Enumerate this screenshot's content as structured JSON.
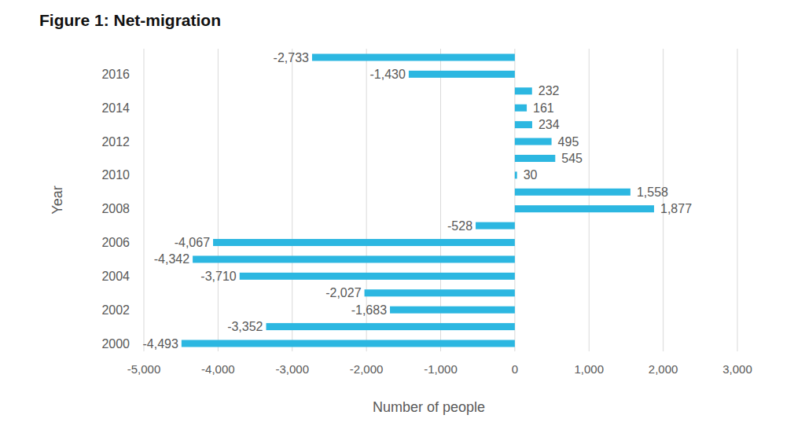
{
  "chart_data": {
    "type": "bar",
    "orientation": "horizontal",
    "title": "Figure 1: Net-migration",
    "x_label": "Number of people",
    "y_label": "Year",
    "categories": [
      "2000",
      null,
      "2002",
      null,
      "2004",
      null,
      "2006",
      null,
      "2008",
      null,
      "2010",
      null,
      "2012",
      null,
      "2014",
      null,
      "2016",
      null
    ],
    "values": [
      -4493,
      -3352,
      -1683,
      -2027,
      -3710,
      -4342,
      -4067,
      -528,
      1877,
      1558,
      30,
      545,
      495,
      234,
      161,
      232,
      -1430,
      -2733
    ],
    "value_labels": [
      "-4,493",
      "-3,352",
      "-1,683",
      "-2,027",
      "-3,710",
      "-4,342",
      "-4,067",
      "-528",
      "1,877",
      "1,558",
      "30",
      "545",
      "495",
      "234",
      "161",
      "232",
      "-1,430",
      "-2,733"
    ],
    "data_labels": true,
    "color": "#2cb7e1",
    "xlim": [
      -5000,
      3000
    ],
    "xticks": [
      {
        "value": -5000,
        "label": "-5,000"
      },
      {
        "value": -4000,
        "label": "-4,000"
      },
      {
        "value": -3000,
        "label": "-3,000"
      },
      {
        "value": -2000,
        "label": "-2,000"
      },
      {
        "value": -1000,
        "label": "-1,000"
      },
      0,
      {
        "value": 1000,
        "label": "1,000"
      },
      {
        "value": 2000,
        "label": "2,000"
      },
      {
        "value": 3000,
        "label": "3,000"
      }
    ],
    "grid": true
  }
}
